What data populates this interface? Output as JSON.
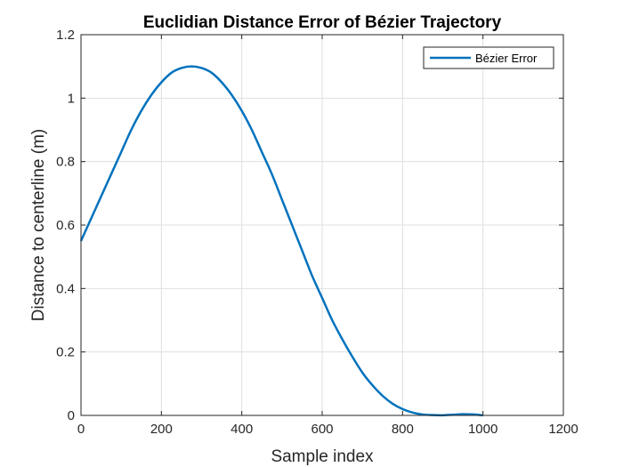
{
  "chart_data": {
    "type": "line",
    "title": "Euclidian Distance Error of Bézier Trajectory",
    "xlabel": "Sample index",
    "ylabel": "Distance to centerline (m)",
    "xlim": [
      0,
      1200
    ],
    "ylim": [
      0,
      1.2
    ],
    "xticks": [
      0,
      200,
      400,
      600,
      800,
      1000,
      1200
    ],
    "yticks": [
      0,
      0.2,
      0.4,
      0.6,
      0.8,
      1,
      1.2
    ],
    "xtick_labels": [
      "0",
      "200",
      "400",
      "600",
      "800",
      "1000",
      "1200"
    ],
    "ytick_labels": [
      "0",
      "0.2",
      "0.4",
      "0.6",
      "0.8",
      "1",
      "1.2"
    ],
    "grid": true,
    "legend_position": "top-right",
    "series": [
      {
        "name": "Bézier Error",
        "color": "#0072BD",
        "x": [
          0,
          25,
          50,
          75,
          100,
          125,
          150,
          175,
          200,
          225,
          250,
          275,
          300,
          325,
          350,
          375,
          400,
          425,
          450,
          475,
          500,
          525,
          550,
          575,
          600,
          625,
          650,
          675,
          700,
          725,
          750,
          775,
          800,
          825,
          850,
          875,
          900,
          925,
          950,
          975,
          1000
        ],
        "y": [
          0.55,
          0.62,
          0.69,
          0.76,
          0.83,
          0.9,
          0.96,
          1.01,
          1.05,
          1.08,
          1.095,
          1.1,
          1.095,
          1.08,
          1.05,
          1.01,
          0.96,
          0.9,
          0.83,
          0.76,
          0.68,
          0.6,
          0.52,
          0.44,
          0.37,
          0.3,
          0.24,
          0.185,
          0.135,
          0.095,
          0.062,
          0.037,
          0.02,
          0.009,
          0.003,
          0.001,
          0.0005,
          0.002,
          0.004,
          0.003,
          0.0
        ]
      }
    ]
  }
}
